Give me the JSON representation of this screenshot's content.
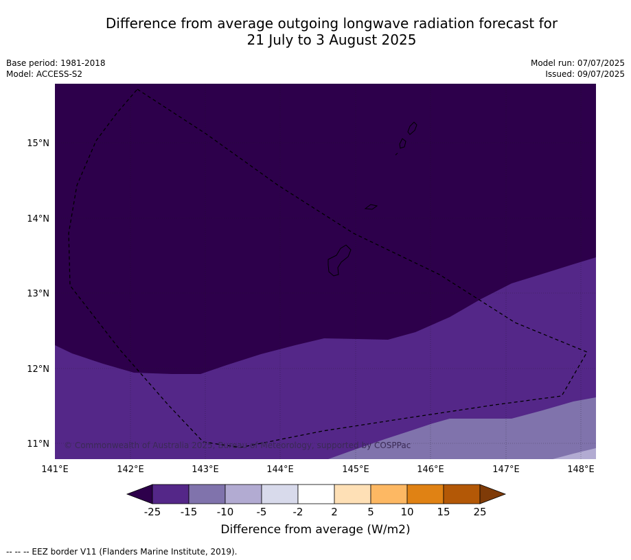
{
  "header": {
    "title_line1": "Difference from average outgoing longwave radiation forecast for",
    "title_line2": "21 July to 3 August 2025",
    "base_period": "Base period: 1981-2018",
    "model": "Model: ACCESS-S2",
    "model_run": "Model run: 07/07/2025",
    "issued": "Issued: 09/07/2025"
  },
  "map": {
    "lat_labels": [
      "15°N",
      "14°N",
      "13°N",
      "12°N",
      "11°N"
    ],
    "lon_labels": [
      "141°E",
      "142°E",
      "143°E",
      "144°E",
      "145°E",
      "146°E",
      "147°E",
      "148°E"
    ],
    "copyright": "© Commonwealth of Australia 2025, Bureau of Meteorology, supported by COSPPac"
  },
  "colorbar": {
    "ticks": [
      "-25",
      "-15",
      "-10",
      "-5",
      "-2",
      "2",
      "5",
      "10",
      "15",
      "25"
    ],
    "colors": [
      "#542788",
      "#8073ac",
      "#b2abd2",
      "#d8daeb",
      "#ffffff",
      "#fee0b6",
      "#fdb863",
      "#e08214",
      "#b35806"
    ],
    "under_color": "#2d004b",
    "over_color": "#7f3b08",
    "label": "Difference from average (W/m2)"
  },
  "footnote": "--  --  -- EEZ border V11 (Flanders Marine Institute, 2019)."
}
